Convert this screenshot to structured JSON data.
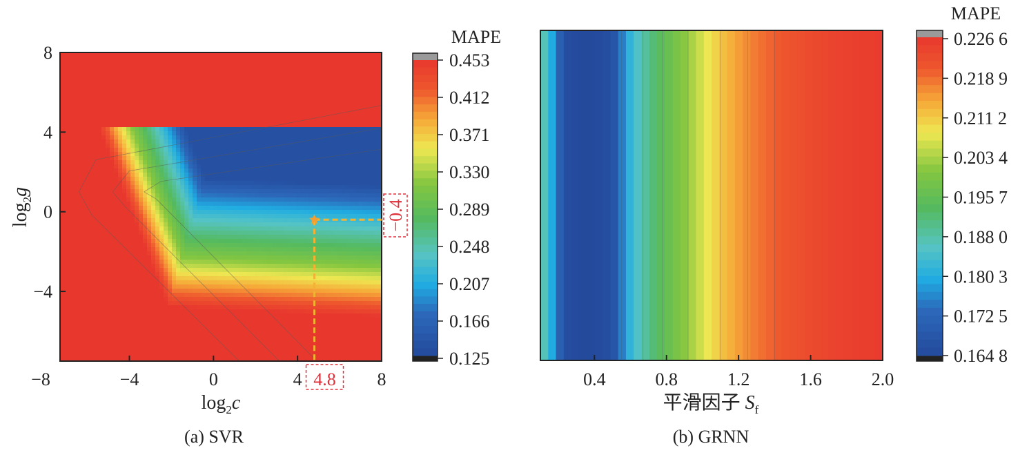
{
  "chart_data": [
    {
      "type": "heatmap",
      "panel": "(a) SVR",
      "caption": "(a) SVR",
      "xlabel": {
        "base": "log",
        "sub": "2",
        "var": "c"
      },
      "ylabel": {
        "base": "log",
        "sub": "2",
        "var": "g"
      },
      "xlim": [
        -7.3,
        8
      ],
      "ylim": [
        -7.5,
        8
      ],
      "xticks": [
        -8,
        -4,
        0,
        4,
        8
      ],
      "xtick_labels": [
        "−8",
        "−4",
        "0",
        "4",
        "8"
      ],
      "yticks": [
        8,
        4,
        0,
        -4
      ],
      "ytick_labels": [
        "8",
        "4",
        "0",
        "−4"
      ],
      "colorbar_title": "MAPE",
      "colorbar_range": [
        0.125,
        0.453
      ],
      "colorbar_ticks": [
        "0.453",
        "0.412",
        "0.371",
        "0.330",
        "0.289",
        "0.248",
        "0.207",
        "0.166",
        "0.125"
      ],
      "optimum": {
        "log2c": 4.8,
        "log2g": -0.4,
        "x_label": "4.8",
        "y_label": "−0.4"
      }
    },
    {
      "type": "heatmap",
      "panel": "(b) GRNN",
      "caption": "(b) GRNN",
      "xlabel": {
        "text": "平滑因子 ",
        "var": "S",
        "sub": "f"
      },
      "xlim": [
        0.1,
        2.0
      ],
      "xticks": [
        0.4,
        0.8,
        1.2,
        1.6,
        2.0
      ],
      "xtick_labels": [
        "0.4",
        "0.8",
        "1.2",
        "1.6",
        "2.0"
      ],
      "colorbar_title": "MAPE",
      "colorbar_range": [
        0.1648,
        0.2266
      ],
      "colorbar_ticks": [
        "0.226 6",
        "0.218 9",
        "0.211 2",
        "0.203 4",
        "0.195 7",
        "0.188 0",
        "0.180 3",
        "0.172 5",
        "0.164 8"
      ],
      "profile_x": [
        0.1,
        0.15,
        0.2,
        0.25,
        0.3,
        0.4,
        0.5,
        0.55,
        0.6,
        0.7,
        0.8,
        0.9,
        1.0,
        1.1,
        1.2,
        1.3,
        1.4,
        1.5,
        1.6,
        1.7,
        1.8,
        1.9,
        2.0
      ],
      "profile_mape": [
        0.1895,
        0.183,
        0.172,
        0.166,
        0.165,
        0.1648,
        0.1665,
        0.175,
        0.182,
        0.19,
        0.196,
        0.201,
        0.2065,
        0.2115,
        0.215,
        0.218,
        0.22,
        0.2215,
        0.223,
        0.224,
        0.225,
        0.2255,
        0.226
      ]
    }
  ]
}
